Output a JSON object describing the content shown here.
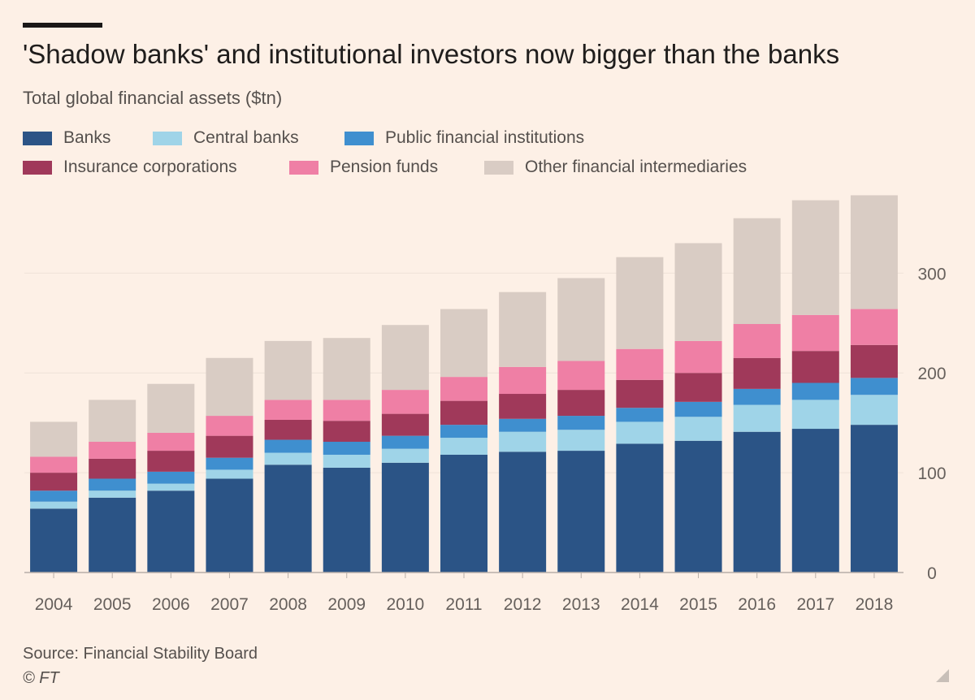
{
  "header": {
    "title": "'Shadow banks' and institutional investors now bigger than the banks",
    "subtitle": "Total global financial assets ($tn)"
  },
  "footer": {
    "source": "Source: Financial Stability Board",
    "copyright": "© FT"
  },
  "chart_data": {
    "type": "bar",
    "stacked": true,
    "title": "'Shadow banks' and institutional investors now bigger than the banks",
    "subtitle": "Total global financial assets ($tn)",
    "xlabel": "",
    "ylabel": "",
    "ylim": [
      0,
      380
    ],
    "yticks": [
      0,
      100,
      200,
      300
    ],
    "y_axis_side": "right",
    "grid": true,
    "legend_position": "top",
    "categories": [
      "2004",
      "2005",
      "2006",
      "2007",
      "2008",
      "2009",
      "2010",
      "2011",
      "2012",
      "2013",
      "2014",
      "2015",
      "2016",
      "2017",
      "2018"
    ],
    "series": [
      {
        "name": "Banks",
        "color": "#2b5486",
        "values": [
          64,
          75,
          82,
          94,
          108,
          105,
          110,
          118,
          121,
          122,
          129,
          132,
          141,
          144,
          148
        ]
      },
      {
        "name": "Central banks",
        "color": "#9fd4e8",
        "values": [
          7,
          7,
          7,
          9,
          12,
          13,
          14,
          17,
          20,
          21,
          22,
          24,
          27,
          29,
          30
        ]
      },
      {
        "name": "Public financial institutions",
        "color": "#3f8fcf",
        "values": [
          11,
          12,
          12,
          12,
          13,
          13,
          13,
          13,
          13,
          14,
          14,
          15,
          16,
          17,
          17
        ]
      },
      {
        "name": "Insurance corporations",
        "color": "#a0395a",
        "values": [
          18,
          20,
          21,
          22,
          20,
          21,
          22,
          24,
          25,
          26,
          28,
          29,
          31,
          32,
          33
        ]
      },
      {
        "name": "Pension funds",
        "color": "#ef7fa5",
        "values": [
          16,
          17,
          18,
          20,
          20,
          21,
          24,
          24,
          27,
          29,
          31,
          32,
          34,
          36,
          36
        ]
      },
      {
        "name": "Other financial intermediaries",
        "color": "#d9ccc4",
        "values": [
          35,
          42,
          49,
          58,
          59,
          62,
          65,
          68,
          75,
          83,
          92,
          98,
          106,
          115,
          114
        ]
      }
    ]
  },
  "icons": {
    "resize": "resize-corner-icon"
  }
}
